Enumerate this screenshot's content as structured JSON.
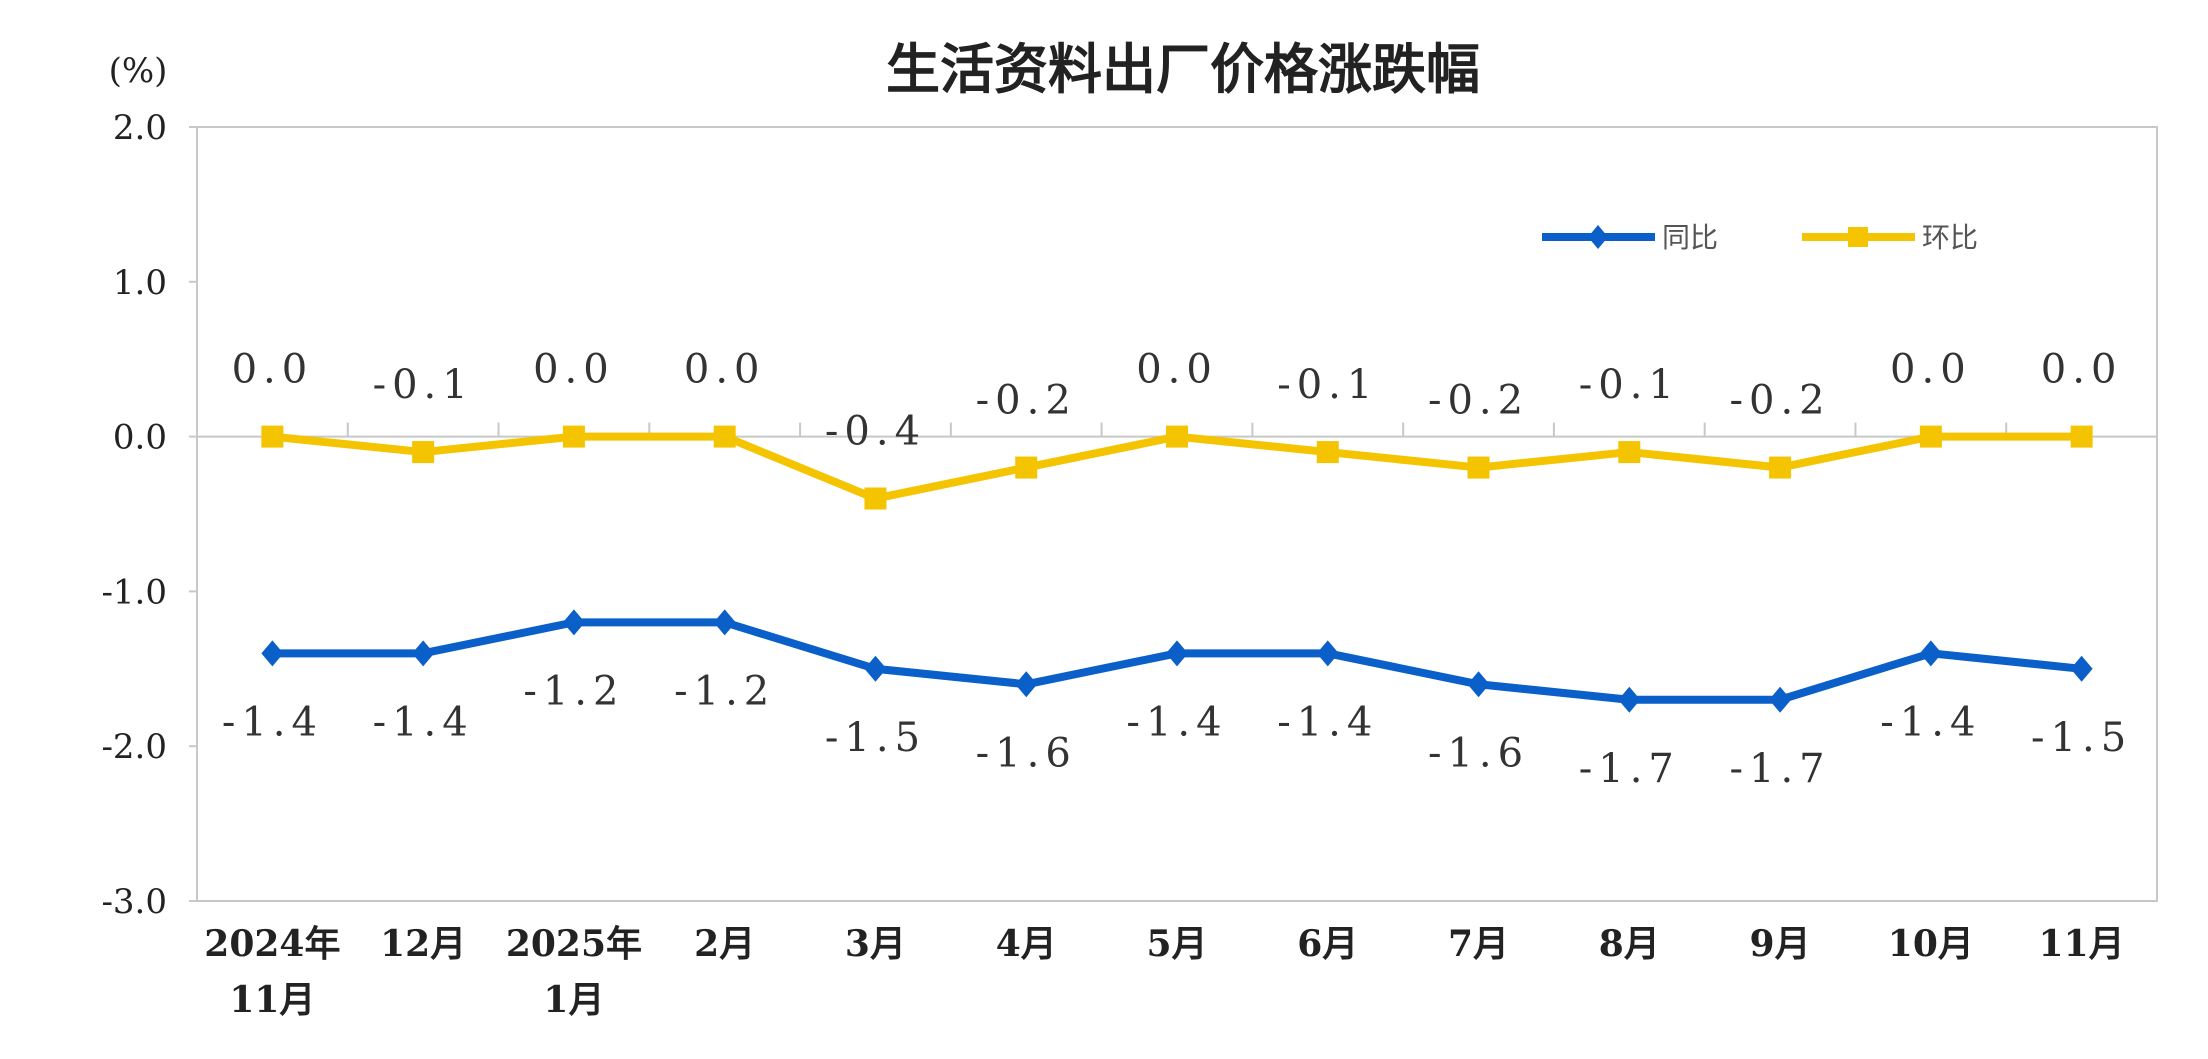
{
  "chart_data": {
    "type": "line",
    "title": "生活资料出厂价格涨跌幅",
    "ylabel": "(%)",
    "ylim": [
      -3.0,
      2.0
    ],
    "yticks": [
      "2.0",
      "1.0",
      "0.0",
      "-1.0",
      "-2.0",
      "-3.0"
    ],
    "categories": [
      [
        "2024年",
        "11月"
      ],
      [
        "12月"
      ],
      [
        "2025年",
        "1月"
      ],
      [
        "2月"
      ],
      [
        "3月"
      ],
      [
        "4月"
      ],
      [
        "5月"
      ],
      [
        "6月"
      ],
      [
        "7月"
      ],
      [
        "8月"
      ],
      [
        "9月"
      ],
      [
        "10月"
      ],
      [
        "11月"
      ]
    ],
    "legend_position": "top-right",
    "grid": false,
    "series": [
      {
        "name": "同比",
        "color": "#0a5fc8",
        "marker": "diamond",
        "values": [
          -1.4,
          -1.4,
          -1.2,
          -1.2,
          -1.5,
          -1.6,
          -1.4,
          -1.4,
          -1.6,
          -1.7,
          -1.7,
          -1.4,
          -1.5
        ],
        "labels": [
          "-1.4",
          "-1.4",
          "-1.2",
          "-1.2",
          "-1.5",
          "-1.6",
          "-1.4",
          "-1.4",
          "-1.6",
          "-1.7",
          "-1.7",
          "-1.4",
          "-1.5"
        ]
      },
      {
        "name": "环比",
        "color": "#f5c400",
        "marker": "square",
        "values": [
          0.0,
          -0.1,
          0.0,
          0.0,
          -0.4,
          -0.2,
          0.0,
          -0.1,
          -0.2,
          -0.1,
          -0.2,
          0.0,
          0.0
        ],
        "labels": [
          "0.0",
          "-0.1",
          "0.0",
          "0.0",
          "-0.4",
          "-0.2",
          "0.0",
          "-0.1",
          "-0.2",
          "-0.1",
          "-0.2",
          "0.0",
          "0.0"
        ]
      }
    ]
  }
}
